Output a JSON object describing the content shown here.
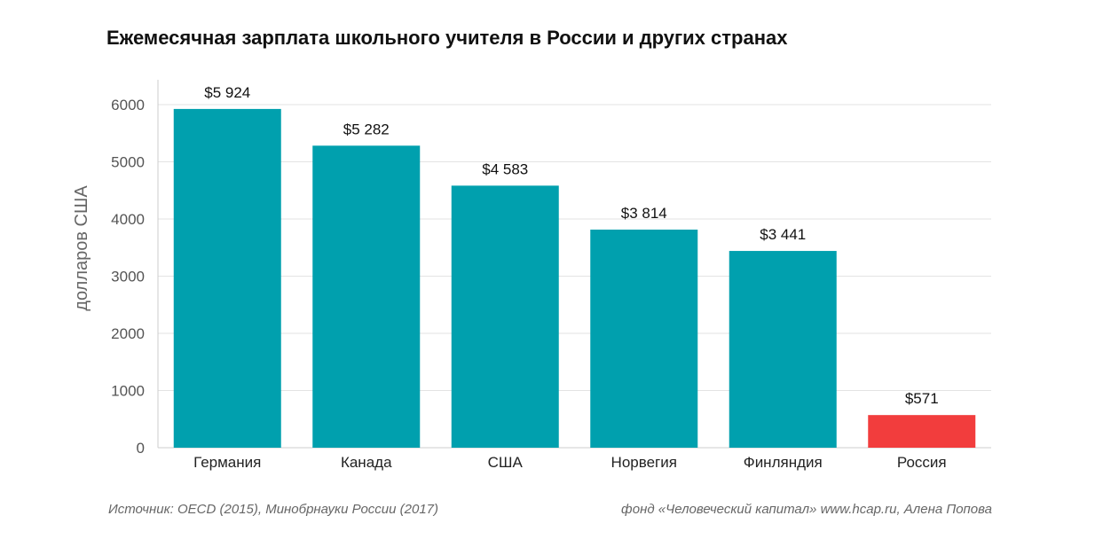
{
  "chart_data": {
    "type": "bar",
    "title": "Ежемесячная зарплата школьного учителя в России и других странах",
    "ylabel": "долларов США",
    "xlabel": "",
    "ylim": [
      0,
      6000
    ],
    "yticks": [
      0,
      1000,
      2000,
      3000,
      4000,
      5000,
      6000
    ],
    "grid": true,
    "categories": [
      "Германия",
      "Канада",
      "США",
      "Норвегия",
      "Финляндия",
      "Россия"
    ],
    "values": [
      5924,
      5282,
      4583,
      3814,
      3441,
      571
    ],
    "data_labels": [
      "$5 924",
      "$5 282",
      "$4 583",
      "$3 814",
      "$3 441",
      "$571"
    ],
    "colors": {
      "default": "#00a0ae",
      "highlight": "#f23d3d",
      "grid": "#e3e3e3",
      "axis": "#cccccc",
      "tick_label": "#555555",
      "ylabel": "#666666"
    },
    "highlight_index": 5
  },
  "footer": {
    "source": "Источник: OECD (2015), Минобрнауки России (2017)",
    "credit": "фонд «Человеческий капитал» www.hcap.ru, Алена Попова"
  }
}
